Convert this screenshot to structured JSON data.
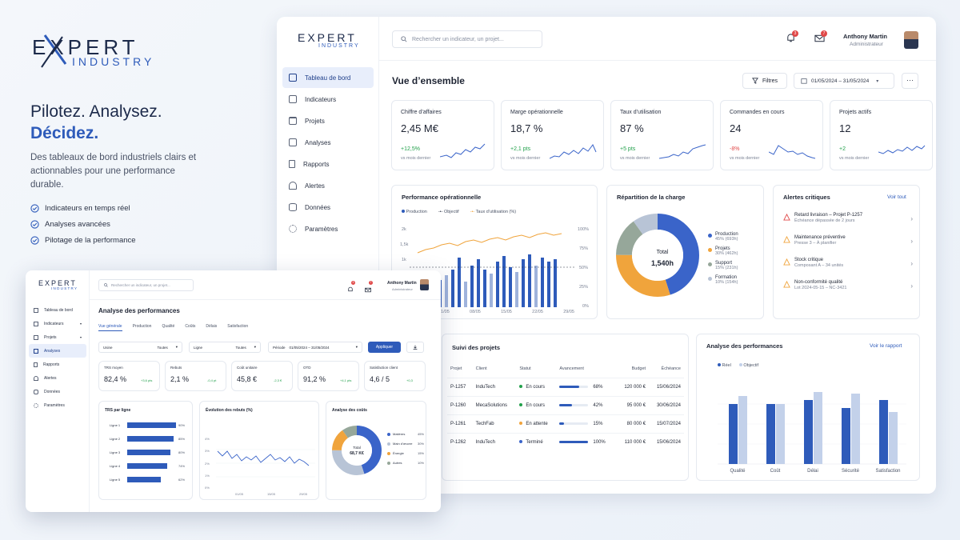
{
  "brand": {
    "name_top": "EXPERT",
    "name_bottom": "INDUSTRY"
  },
  "hero": {
    "line1": "Pilotez. Analysez.",
    "line2": "Décidez.",
    "description": "Des tableaux de bord industriels clairs et actionnables pour une performance durable.",
    "features": [
      "Indicateurs en temps réel",
      "Analyses avancées",
      "Pilotage de la performance"
    ]
  },
  "main": {
    "search_placeholder": "Rechercher un indicateur, un projet...",
    "notif_count": "3",
    "msg_count": "7",
    "user_name": "Anthony Martin",
    "user_role": "Administrateur",
    "nav": [
      "Tableau de bord",
      "Indicateurs",
      "Projets",
      "Analyses",
      "Rapports",
      "Alertes",
      "Données",
      "Paramètres"
    ],
    "page_title": "Vue d’ensemble",
    "filters_label": "Filtres",
    "date_range": "01/05/2024 – 31/05/2024",
    "more_label": "···",
    "kpis": [
      {
        "label": "Chiffre d’affaires",
        "value": "2,45 M€",
        "delta": "+12,5%",
        "trend": "up",
        "note": "vs mois dernier"
      },
      {
        "label": "Marge opérationnelle",
        "value": "18,7 %",
        "delta": "+2,1 pts",
        "trend": "up",
        "note": "vs mois dernier"
      },
      {
        "label": "Taux d’utilisation",
        "value": "87 %",
        "delta": "+5 pts",
        "trend": "up",
        "note": "vs mois dernier"
      },
      {
        "label": "Commandes en cours",
        "value": "24",
        "delta": "-8%",
        "trend": "down",
        "note": "vs mois dernier"
      },
      {
        "label": "Projets actifs",
        "value": "12",
        "delta": "+2",
        "trend": "up",
        "note": "vs mois dernier"
      }
    ],
    "perf": {
      "title": "Performance opérationnelle",
      "legend": [
        "Production",
        "Objectif",
        "Taux d’utilisation (%)"
      ],
      "y_left": [
        "2k",
        "1,5k",
        "1k"
      ],
      "y_right": [
        "100%",
        "75%",
        "50%",
        "25%",
        "0%"
      ],
      "x_labels": [
        "01/05",
        "08/05",
        "15/05",
        "22/05",
        "29/05"
      ]
    },
    "charge": {
      "title": "Répartition de la charge",
      "total_label": "Total",
      "total_value": "1,540h",
      "items": [
        {
          "name": "Production",
          "detail": "45% (693h)",
          "pct": 45,
          "color": "#3a64c9"
        },
        {
          "name": "Projets",
          "detail": "30% (462h)",
          "pct": 30,
          "color": "#f0a43c"
        },
        {
          "name": "Support",
          "detail": "15% (231h)",
          "pct": 15,
          "color": "#96a79a"
        },
        {
          "name": "Formation",
          "detail": "10% (154h)",
          "pct": 10,
          "color": "#b8c4d6"
        }
      ]
    },
    "alerts": {
      "title": "Alertes critiques",
      "see_all": "Voir tout",
      "items": [
        {
          "title": "Retard livraison – Projet P-1257",
          "sub": "Échéance dépassée de 2 jours",
          "color": "#e04848"
        },
        {
          "title": "Maintenance préventive",
          "sub": "Presse 3 – À planifier",
          "color": "#f0a43c"
        },
        {
          "title": "Stock critique",
          "sub": "Composant A – 34 unités",
          "color": "#f0a43c"
        },
        {
          "title": "Non-conformité qualité",
          "sub": "Lot 2024-05-15 – NC-3421",
          "color": "#f0a43c"
        }
      ]
    },
    "projects": {
      "title": "Suivi des projets",
      "headers": [
        "Projet",
        "Client",
        "Statut",
        "Avancement",
        "Budget",
        "Échéance"
      ],
      "rows": [
        {
          "id": "P-1257",
          "client": "InduTech",
          "status": "En cours",
          "color": "#22a04b",
          "progress": 68,
          "pct": "68%",
          "budget": "120 000 €",
          "due": "15/06/2024"
        },
        {
          "id": "P-1260",
          "client": "MecaSolutions",
          "status": "En cours",
          "color": "#22a04b",
          "progress": 42,
          "pct": "42%",
          "budget": "95 000 €",
          "due": "30/06/2024"
        },
        {
          "id": "P-1261",
          "client": "TechFab",
          "status": "En attente",
          "color": "#f0a43c",
          "progress": 15,
          "pct": "15%",
          "budget": "80 000 €",
          "due": "15/07/2024"
        },
        {
          "id": "P-1262",
          "client": "InduTech",
          "status": "Terminé",
          "color": "#3a64c9",
          "progress": 100,
          "pct": "100%",
          "budget": "110 000 €",
          "due": "15/06/2024"
        }
      ]
    },
    "analysis": {
      "title": "Analyse des performances",
      "link": "Voir le rapport",
      "legend": [
        "Réel",
        "Objectif"
      ],
      "categories": [
        "Qualité",
        "Coût",
        "Délai",
        "Sécurité",
        "Satisfaction"
      ],
      "reel": [
        75,
        75,
        80,
        70,
        80
      ],
      "objectif": [
        85,
        75,
        90,
        88,
        65
      ]
    }
  },
  "secondary": {
    "search_placeholder": "Rechercher un indicateur, un projet...",
    "notif_count": "3",
    "msg_count": "7",
    "user_name": "Anthony Martin",
    "user_role": "Administrateur",
    "nav": [
      "Tableau de bord",
      "Indicateurs",
      "Projets",
      "Analyses",
      "Rapports",
      "Alertes",
      "Données",
      "Paramètres"
    ],
    "page_title": "Analyse des performances",
    "tabs": [
      "Vue générale",
      "Production",
      "Qualité",
      "Coûts",
      "Délais",
      "Satisfaction"
    ],
    "filters": [
      {
        "label": "Usine",
        "value": "Toutes"
      },
      {
        "label": "Ligne",
        "value": "Toutes"
      },
      {
        "label": "Période",
        "value": "01/05/2024 – 31/05/2024"
      }
    ],
    "apply_label": "Appliquer",
    "kpis": [
      {
        "label": "TRS moyen",
        "value": "82,4 %",
        "delta": "+3,6 pts",
        "trend": "up"
      },
      {
        "label": "Rebuts",
        "value": "2,1 %",
        "delta": "-0,4 pt",
        "trend": "up"
      },
      {
        "label": "Coût unitaire",
        "value": "45,8 €",
        "delta": "-2,3 €",
        "trend": "up"
      },
      {
        "label": "OTD",
        "value": "91,2 %",
        "delta": "+4,1 pts",
        "trend": "up"
      },
      {
        "label": "Satisfaction client",
        "value": "4,6 / 5",
        "delta": "+0,3",
        "trend": "up"
      }
    ],
    "trs": {
      "title": "TRS par ligne",
      "lines": [
        {
          "name": "Ligne 1",
          "value": 90,
          "label": "90%"
        },
        {
          "name": "Ligne 2",
          "value": 85,
          "label": "85%"
        },
        {
          "name": "Ligne 3",
          "value": 80,
          "label": "80%"
        },
        {
          "name": "Ligne 4",
          "value": 74,
          "label": "74%"
        },
        {
          "name": "Ligne 5",
          "value": 62,
          "label": "62%"
        }
      ]
    },
    "rebuts": {
      "title": "Évolution des rebuts (%)",
      "y_labels": [
        "4%",
        "3%",
        "2%",
        "1%",
        "0%"
      ],
      "x_labels": [
        "01/05",
        "15/05",
        "29/05"
      ]
    },
    "costs": {
      "title": "Analyse des coûts",
      "total_label": "Total",
      "total_value": "68,7 K€",
      "items": [
        {
          "name": "Matières",
          "pct": 45,
          "label": "45%",
          "color": "#3a64c9"
        },
        {
          "name": "Main d’œuvre",
          "pct": 30,
          "label": "30%",
          "color": "#b8c4d6"
        },
        {
          "name": "Énergie",
          "pct": 15,
          "label": "15%",
          "color": "#f0a43c"
        },
        {
          "name": "Autres",
          "pct": 10,
          "label": "10%",
          "color": "#96a79a"
        }
      ]
    }
  }
}
